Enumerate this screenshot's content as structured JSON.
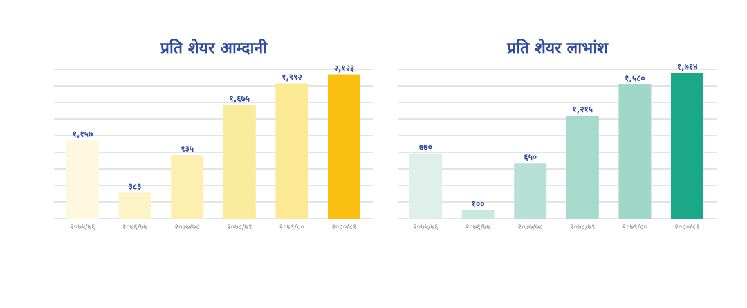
{
  "charts": [
    {
      "type": "bar",
      "title": "प्रति शेयर आम्दानी",
      "categories": [
        "२०७५/७६",
        "२०७६/७७",
        "२०७७/७८",
        "२०७८/७९",
        "२०७९/८०",
        "२०८०/८१"
      ],
      "values": [
        1157,
        383,
        935,
        1675,
        1992,
        2123
      ],
      "value_labels": [
        "१,१५७",
        "३८३",
        "९३५",
        "१,६७५",
        "१,९९२",
        "२,१२३"
      ],
      "colors": [
        "#fdf8de",
        "#fcf3c6",
        "#fcefb0",
        "#fbeb9c",
        "#fbe993",
        "#fbc012"
      ],
      "ylim": [
        0,
        2200
      ],
      "grid": true
    },
    {
      "type": "bar",
      "title": "प्रति शेयर लाभांश",
      "categories": [
        "२०७५/७६",
        "२०७६/७७",
        "२०७७/७८",
        "२०७८/७९",
        "२०७९/८०",
        "२०८०/८१"
      ],
      "values": [
        770,
        100,
        650,
        1215,
        1580,
        1714
      ],
      "value_labels": [
        "७७०",
        "१००",
        "६५०",
        "१,२१५",
        "१,५८०",
        "१,७१४"
      ],
      "colors": [
        "#dff0eb",
        "#c9e8df",
        "#b8e1d5",
        "#a6dacb",
        "#a0d8c8",
        "#1aa886"
      ],
      "ylim": [
        0,
        1760
      ],
      "grid": true
    }
  ]
}
